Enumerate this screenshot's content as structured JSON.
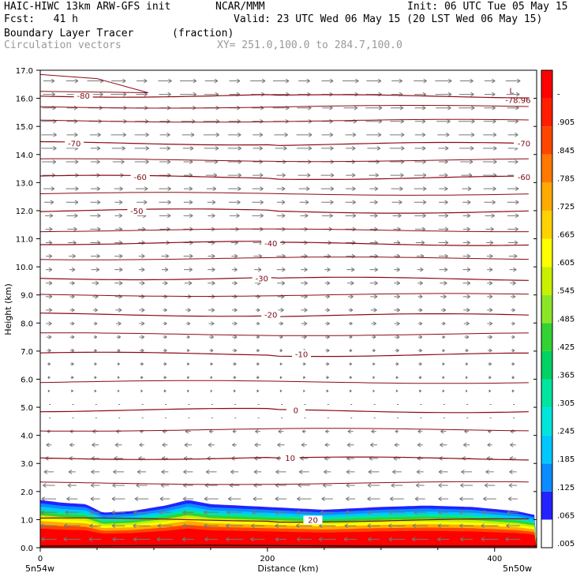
{
  "header": {
    "model": "HAIC-HIWC 13km ARW-GFS init",
    "org": "NCAR/MMM",
    "init": "Init: 06 UTC Tue 05 May 15",
    "fcst": "Fcst:   41 h",
    "valid": "Valid: 23 UTC Wed 06 May 15 (20 LST Wed 06 May 15)",
    "field": "Boundary Layer Tracer",
    "units": "(fraction)",
    "overlay": "Circulation vectors",
    "xy": "XY= 251.0,100.0 to 284.7,100.0"
  },
  "chart_data": {
    "type": "heatmap",
    "title": "Boundary Layer Tracer",
    "xlabel": "Distance (km)",
    "ylabel": "Height (km)",
    "xlim": [
      0,
      437
    ],
    "ylim": [
      0,
      17
    ],
    "x_ticks": [
      "0",
      "200",
      "400"
    ],
    "y_ticks": [
      "0.0",
      "1.0",
      "2.0",
      "3.0",
      "4.0",
      "5.0",
      "6.0",
      "7.0",
      "8.0",
      "9.0",
      "10.0",
      "11.0",
      "12.0",
      "13.0",
      "14.0",
      "15.0",
      "16.0",
      "17.0"
    ],
    "x_end_labels": {
      "left": "5n54w",
      "right": "5n50w"
    },
    "colorbar_labels": [
      ".005",
      ".065",
      ".125",
      ".185",
      ".245",
      ".305",
      ".365",
      ".425",
      ".485",
      ".545",
      ".605",
      ".665",
      ".725",
      ".785",
      ".845",
      ".905",
      "-"
    ],
    "colorbar_colors": [
      "#ffffff",
      "#2323ff",
      "#0a8cff",
      "#00c8ff",
      "#00e6dc",
      "#00e6a0",
      "#00d264",
      "#32d232",
      "#8ce628",
      "#c8f000",
      "#ffff00",
      "#ffd200",
      "#ffaa00",
      "#ff7800",
      "#ff4600",
      "#ff1e00",
      "#ff0000"
    ],
    "temperature_contours": [
      {
        "label": "20",
        "height_km": 1.0,
        "label_x_km": 240
      },
      {
        "label": "10",
        "height_km": 3.2,
        "label_x_km": 220
      },
      {
        "label": "0",
        "height_km": 4.9,
        "label_x_km": 225
      },
      {
        "label": "-10",
        "height_km": 6.9,
        "label_x_km": 230
      },
      {
        "label": "-20",
        "height_km": 8.3,
        "label_x_km": 203
      },
      {
        "label": "-30",
        "height_km": 9.6,
        "label_x_km": 195
      },
      {
        "label": "-40",
        "height_km": 10.85,
        "label_x_km": 203
      },
      {
        "label": "-50",
        "height_km": 12.0,
        "label_x_km": 85
      },
      {
        "label": "-60",
        "height_km": 13.2,
        "label_x_km": 88
      },
      {
        "label": "-70",
        "height_km": 14.4,
        "label_x_km": 30
      },
      {
        "label": "-80",
        "height_km": 16.1,
        "label_x_km": 38
      }
    ],
    "right_contour_labels": [
      {
        "label": "-60",
        "height_km": 13.2
      },
      {
        "label": "-70",
        "height_km": 14.4
      }
    ],
    "minimum_marker": {
      "symbol": "L",
      "value": "-78.96",
      "x_km": 415,
      "height_km": 16.0
    },
    "tracer_profile": {
      "x_km": [
        0,
        20,
        40,
        55,
        80,
        110,
        130,
        150,
        200,
        250,
        300,
        340,
        380,
        420,
        437
      ],
      "top_km": [
        1.7,
        1.6,
        1.55,
        1.25,
        1.3,
        1.5,
        1.7,
        1.55,
        1.45,
        1.35,
        1.45,
        1.5,
        1.45,
        1.3,
        1.15
      ]
    },
    "wind": {
      "low_level": "easterly below 5 km",
      "upper_level": "westerly above 5 km"
    }
  }
}
